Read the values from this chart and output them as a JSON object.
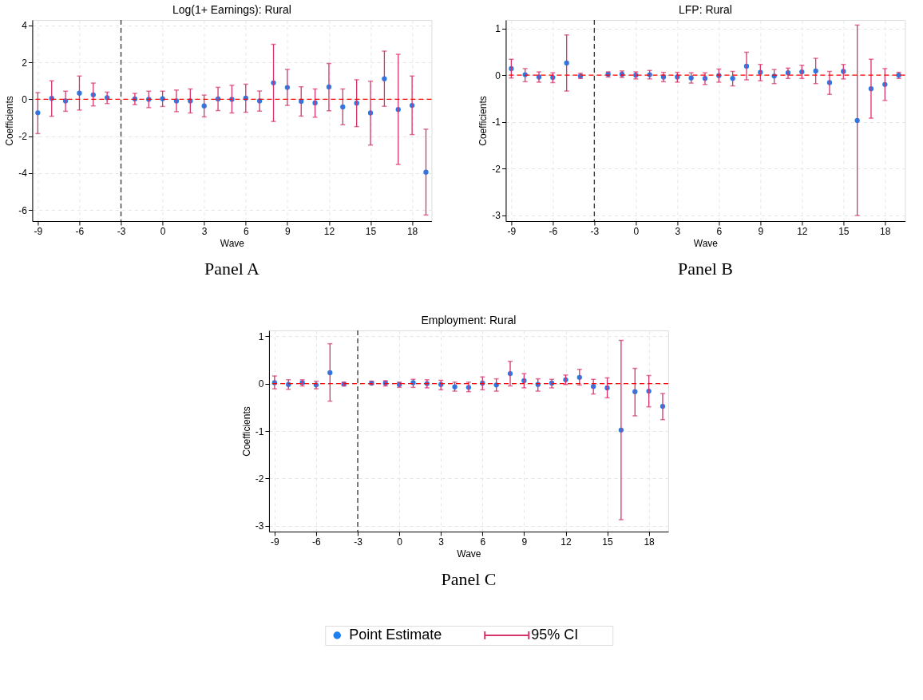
{
  "chart_data": [
    {
      "type": "scatter",
      "title": "Log(1+ Earnings): Rural",
      "xlabel": "Wave",
      "ylabel": "Coefficients",
      "marker": "circle",
      "grid": true,
      "legend": "bottom",
      "x": [
        -9,
        -8,
        -7,
        -6,
        -5,
        -4,
        -2,
        -1,
        0,
        1,
        2,
        3,
        4,
        5,
        6,
        7,
        8,
        9,
        10,
        11,
        12,
        13,
        14,
        15,
        16,
        17,
        18,
        19
      ],
      "series": [
        {
          "name": "Point Estimate",
          "color": "#1f7ff0",
          "values": [
            -0.73,
            0.05,
            -0.09,
            0.33,
            0.24,
            0.09,
            0.02,
            0,
            0.03,
            -0.09,
            -0.09,
            -0.36,
            0.02,
            0,
            0.06,
            -0.09,
            0.89,
            0.64,
            -0.11,
            -0.2,
            0.67,
            -0.41,
            -0.21,
            -0.74,
            1.11,
            -0.55,
            -0.33,
            -3.95
          ],
          "errors": [
            [
              -1.86,
              0.36
            ],
            [
              -0.92,
              1.0
            ],
            [
              -0.65,
              0.44
            ],
            [
              -0.58,
              1.26
            ],
            [
              -0.36,
              0.88
            ],
            [
              -0.23,
              0.39
            ],
            [
              -0.29,
              0.32
            ],
            [
              -0.45,
              0.44
            ],
            [
              -0.39,
              0.44
            ],
            [
              -0.67,
              0.5
            ],
            [
              -0.74,
              0.56
            ],
            [
              -0.95,
              0.23
            ],
            [
              -0.61,
              0.65
            ],
            [
              -0.74,
              0.76
            ],
            [
              -0.7,
              0.82
            ],
            [
              -0.64,
              0.45
            ],
            [
              -1.2,
              2.98
            ],
            [
              -0.33,
              1.62
            ],
            [
              -0.91,
              0.68
            ],
            [
              -0.97,
              0.56
            ],
            [
              -0.62,
              1.94
            ],
            [
              -1.38,
              0.56
            ],
            [
              -1.48,
              1.06
            ],
            [
              -2.48,
              0.98
            ],
            [
              -0.38,
              2.61
            ],
            [
              -3.53,
              2.44
            ],
            [
              -1.91,
              1.26
            ],
            [
              -6.27,
              -1.62
            ]
          ]
        }
      ],
      "xlim": [
        -9.4,
        19.4
      ],
      "xticks": [
        -9,
        -6,
        -3,
        0,
        3,
        6,
        9,
        12,
        15,
        18
      ],
      "ylim": [
        -6.6,
        4.3
      ],
      "yticks": [
        -6,
        -4,
        -2,
        0,
        2,
        4
      ],
      "ref_lines": [
        {
          "axis": "y",
          "value": 0,
          "color": "#ff0000",
          "line_style": "dashed"
        },
        {
          "axis": "x",
          "value": -3,
          "color": "#333333",
          "line_style": "dashed"
        }
      ],
      "annotations": [
        "Panel A",
        "95% CI"
      ]
    },
    {
      "type": "scatter",
      "title": "LFP: Rural",
      "xlabel": "Wave",
      "ylabel": "Coefficients",
      "marker": "circle",
      "grid": true,
      "x": [
        -9,
        -8,
        -7,
        -6,
        -5,
        -4,
        -2,
        -1,
        0,
        1,
        2,
        3,
        4,
        5,
        6,
        7,
        8,
        9,
        10,
        11,
        12,
        13,
        14,
        15,
        16,
        17,
        18,
        19
      ],
      "series": [
        {
          "color": "#1f7ff0",
          "values": [
            0.14,
            0.01,
            -0.04,
            -0.05,
            0.26,
            -0.02,
            0.02,
            0.02,
            0,
            0.01,
            -0.04,
            -0.04,
            -0.06,
            -0.07,
            -0.01,
            -0.07,
            0.19,
            0.06,
            -0.02,
            0.05,
            0.07,
            0.09,
            -0.16,
            0.08,
            -0.97,
            -0.29,
            -0.2,
            0
          ],
          "errors": [
            [
              -0.06,
              0.34
            ],
            [
              -0.14,
              0.14
            ],
            [
              -0.15,
              0.07
            ],
            [
              -0.16,
              0.05
            ],
            [
              -0.34,
              0.86
            ],
            [
              -0.07,
              0.04
            ],
            [
              -0.04,
              0.07
            ],
            [
              -0.05,
              0.09
            ],
            [
              -0.08,
              0.07
            ],
            [
              -0.08,
              0.1
            ],
            [
              -0.14,
              0.06
            ],
            [
              -0.15,
              0.06
            ],
            [
              -0.17,
              0.05
            ],
            [
              -0.2,
              0.05
            ],
            [
              -0.15,
              0.13
            ],
            [
              -0.23,
              0.08
            ],
            [
              -0.1,
              0.49
            ],
            [
              -0.12,
              0.23
            ],
            [
              -0.18,
              0.12
            ],
            [
              -0.07,
              0.15
            ],
            [
              -0.07,
              0.21
            ],
            [
              -0.18,
              0.36
            ],
            [
              -0.41,
              0.08
            ],
            [
              -0.08,
              0.23
            ],
            [
              -3.0,
              1.07
            ],
            [
              -0.92,
              0.34
            ],
            [
              -0.54,
              0.14
            ],
            [
              -0.07,
              0.06
            ]
          ]
        }
      ],
      "xlim": [
        -9.4,
        19.45
      ],
      "xticks": [
        -9,
        -6,
        -3,
        0,
        3,
        6,
        9,
        12,
        15,
        18
      ],
      "ylim": [
        -3.12,
        1.18
      ],
      "yticks": [
        -3,
        -2,
        -1,
        0,
        1
      ],
      "ref_lines": [
        {
          "axis": "y",
          "value": 0,
          "color": "#ff0000",
          "line_style": "dashed"
        },
        {
          "axis": "x",
          "value": -3,
          "color": "#333333",
          "line_style": "dashed"
        }
      ],
      "annotations": [
        "Panel B"
      ]
    },
    {
      "type": "scatter",
      "title": "Employment: Rural",
      "xlabel": "Wave",
      "ylabel": "Coefficients",
      "marker": "circle",
      "grid": true,
      "x": [
        -9,
        -8,
        -7,
        -6,
        -5,
        -4,
        -2,
        -1,
        0,
        1,
        2,
        3,
        4,
        5,
        6,
        7,
        8,
        9,
        10,
        11,
        12,
        13,
        14,
        15,
        16,
        17,
        18,
        19
      ],
      "series": [
        {
          "color": "#1f7ff0",
          "values": [
            0.02,
            -0.02,
            0.02,
            -0.03,
            0.23,
            -0.01,
            0.01,
            0.01,
            -0.02,
            0.02,
            0,
            -0.02,
            -0.07,
            -0.08,
            0.01,
            -0.03,
            0.21,
            0.06,
            -0.02,
            0.01,
            0.08,
            0.13,
            -0.06,
            -0.09,
            -0.98,
            -0.17,
            -0.16,
            -0.48
          ],
          "errors": [
            [
              -0.11,
              0.16
            ],
            [
              -0.12,
              0.08
            ],
            [
              -0.05,
              0.08
            ],
            [
              -0.11,
              0.05
            ],
            [
              -0.37,
              0.84
            ],
            [
              -0.05,
              0.03
            ],
            [
              -0.02,
              0.05
            ],
            [
              -0.05,
              0.06
            ],
            [
              -0.08,
              0.03
            ],
            [
              -0.08,
              0.09
            ],
            [
              -0.09,
              0.08
            ],
            [
              -0.13,
              0.07
            ],
            [
              -0.16,
              0.03
            ],
            [
              -0.17,
              0.03
            ],
            [
              -0.13,
              0.14
            ],
            [
              -0.16,
              0.1
            ],
            [
              -0.05,
              0.47
            ],
            [
              -0.09,
              0.21
            ],
            [
              -0.16,
              0.1
            ],
            [
              -0.09,
              0.09
            ],
            [
              -0.02,
              0.18
            ],
            [
              -0.03,
              0.3
            ],
            [
              -0.22,
              0.09
            ],
            [
              -0.3,
              0.12
            ],
            [
              -2.87,
              0.91
            ],
            [
              -0.68,
              0.32
            ],
            [
              -0.49,
              0.17
            ],
            [
              -0.76,
              -0.21
            ]
          ]
        }
      ],
      "xlim": [
        -9.4,
        19.4
      ],
      "xticks": [
        -9,
        -6,
        -3,
        0,
        3,
        6,
        9,
        12,
        15,
        18
      ],
      "ylim": [
        -3.12,
        1.12
      ],
      "yticks": [
        -3,
        -2,
        -1,
        0,
        1
      ],
      "ref_lines": [
        {
          "axis": "y",
          "value": 0,
          "color": "#ff0000",
          "line_style": "dashed"
        },
        {
          "axis": "x",
          "value": -3,
          "color": "#333333",
          "line_style": "dashed"
        }
      ],
      "annotations": [
        "Panel C"
      ]
    }
  ]
}
